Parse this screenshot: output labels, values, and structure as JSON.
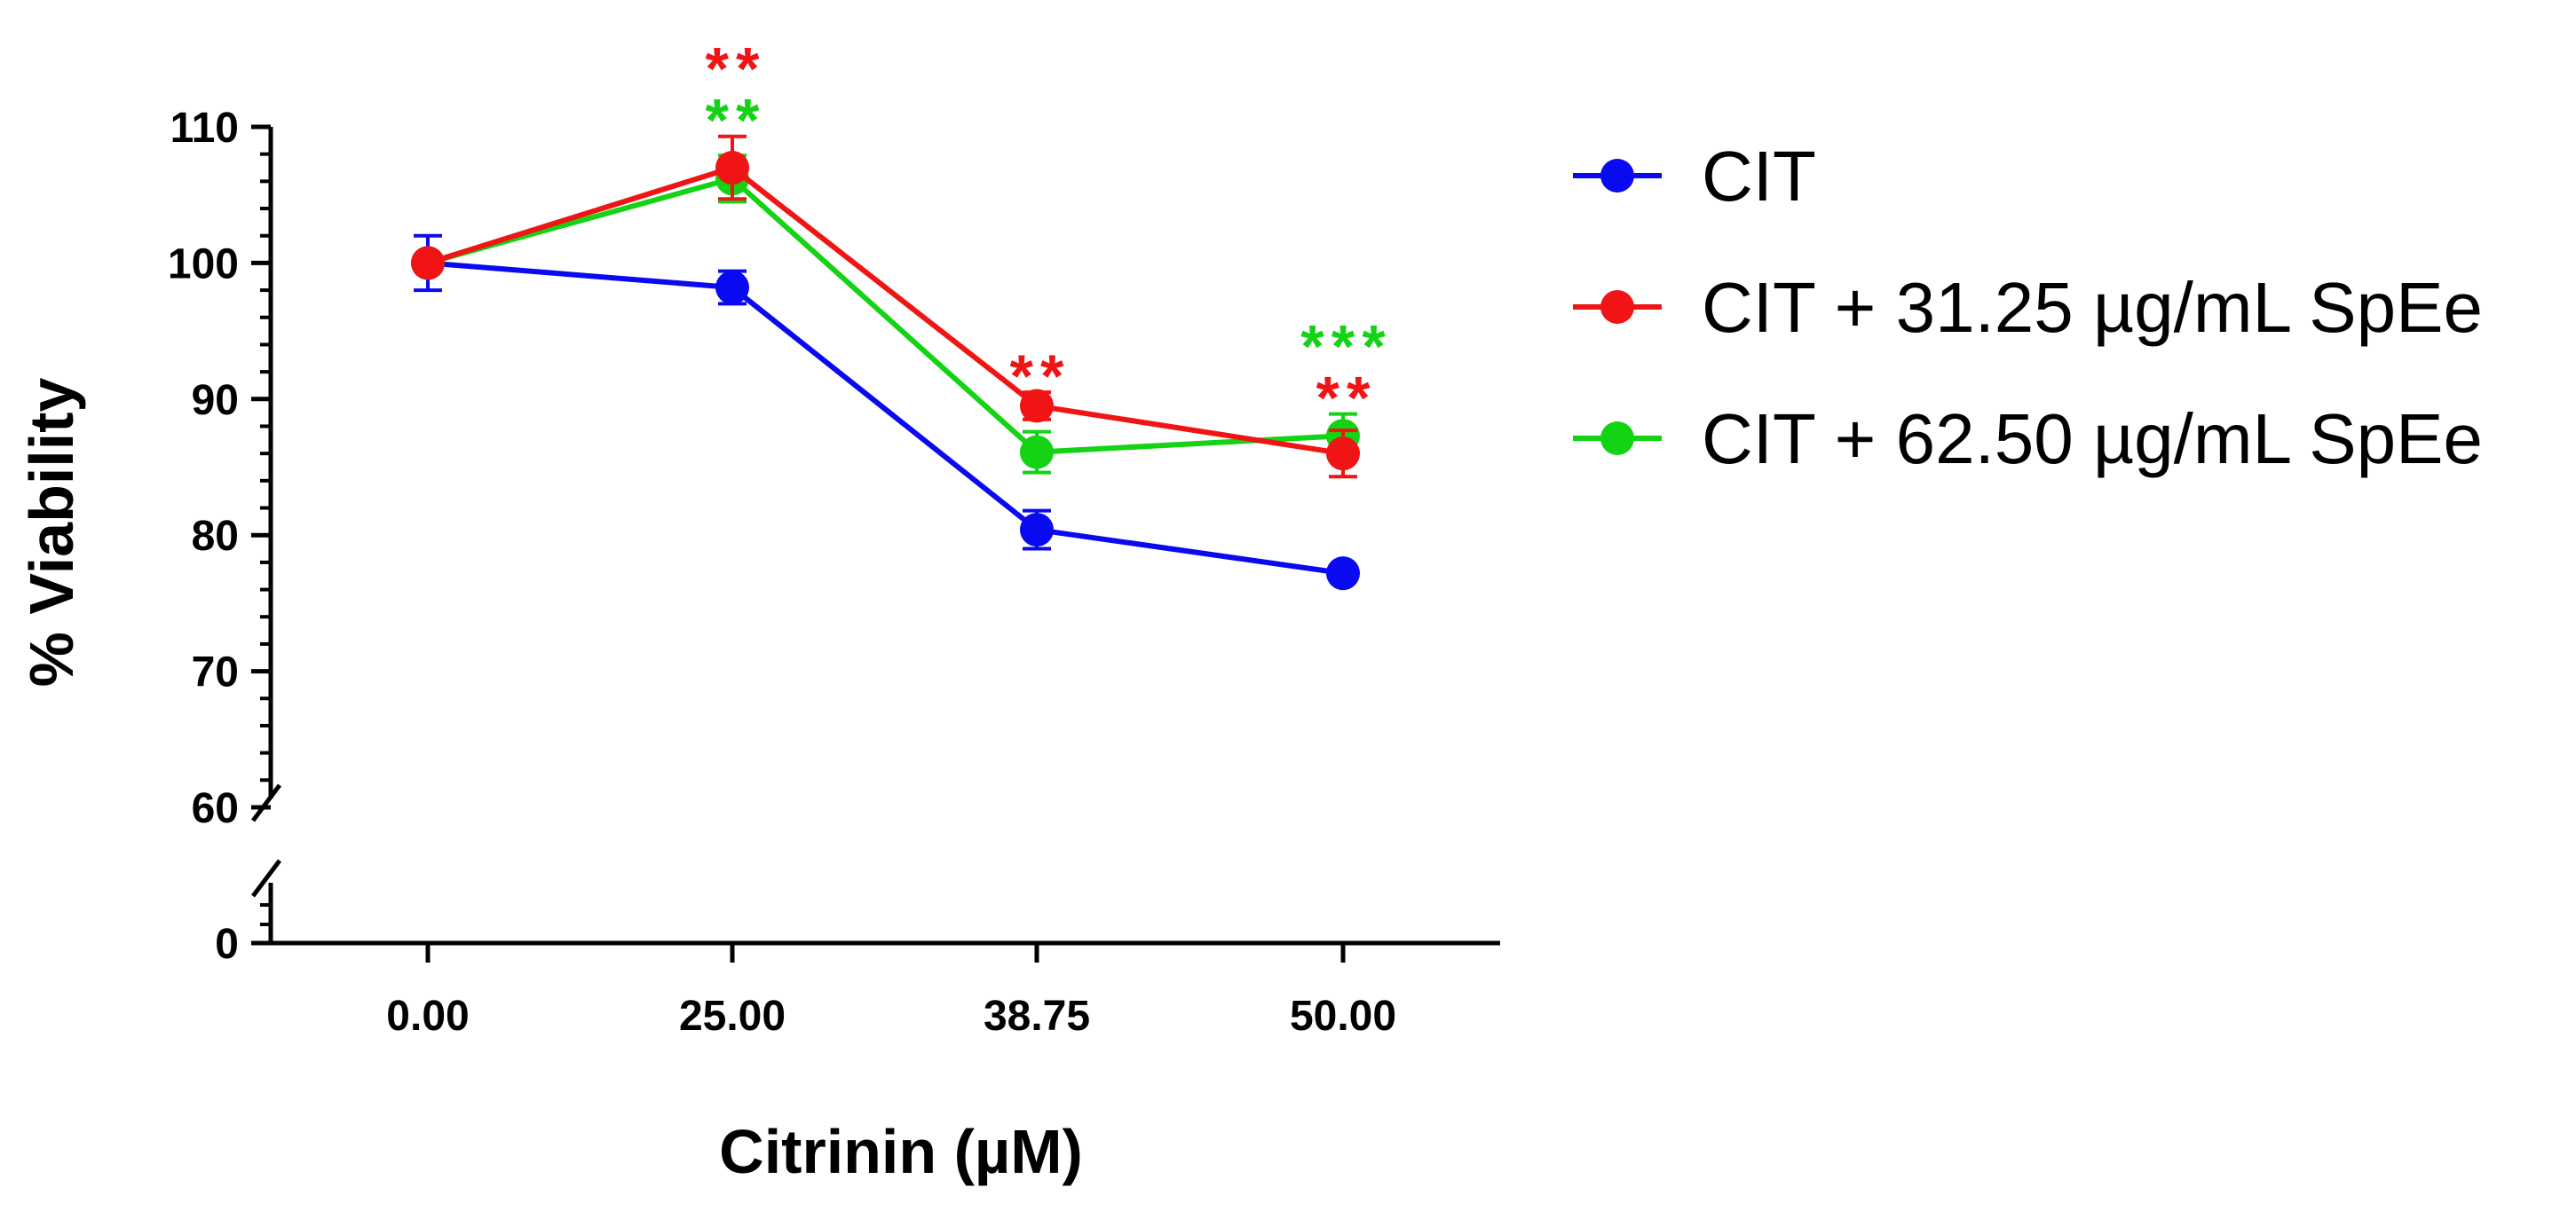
{
  "chart_data": {
    "type": "line",
    "title": "",
    "xlabel": "Citrinin (µM)",
    "ylabel": "% Viability",
    "categories": [
      "0.00",
      "25.00",
      "38.75",
      "50.00"
    ],
    "y_axis": {
      "segments": [
        [
          0,
          0
        ],
        [
          60,
          110
        ]
      ],
      "break_between": [
        0,
        60
      ],
      "major_ticks": [
        "110",
        "100",
        "90",
        "80",
        "70",
        "60",
        "0"
      ]
    },
    "grid": false,
    "legend_position": "right",
    "series": [
      {
        "name": "CIT",
        "color": "#0a0af0",
        "values": [
          100.0,
          98.2,
          80.4,
          77.2
        ],
        "errors": [
          2.0,
          1.2,
          1.4,
          0.4
        ]
      },
      {
        "name": "CIT + 31.25 µg/mL SpEe",
        "color": "#f01414",
        "values": [
          100.0,
          107.0,
          89.5,
          86.0
        ],
        "errors": [
          0.3,
          2.3,
          1.0,
          1.7
        ]
      },
      {
        "name": "CIT + 62.50 µg/mL SpEe",
        "color": "#14d214",
        "values": [
          100.0,
          106.2,
          86.1,
          87.3
        ],
        "errors": [
          0.3,
          1.7,
          1.5,
          1.6
        ]
      }
    ],
    "annotations": [
      {
        "category": "25.00",
        "text": "**",
        "color": "#f01414",
        "row": 2
      },
      {
        "category": "25.00",
        "text": "**",
        "color": "#14d214",
        "row": 1
      },
      {
        "category": "38.75",
        "text": "**",
        "color": "#f01414",
        "row": 1
      },
      {
        "category": "50.00",
        "text": "***",
        "color": "#14d214",
        "row": 2
      },
      {
        "category": "50.00",
        "text": "**",
        "color": "#f01414",
        "row": 1
      }
    ]
  }
}
